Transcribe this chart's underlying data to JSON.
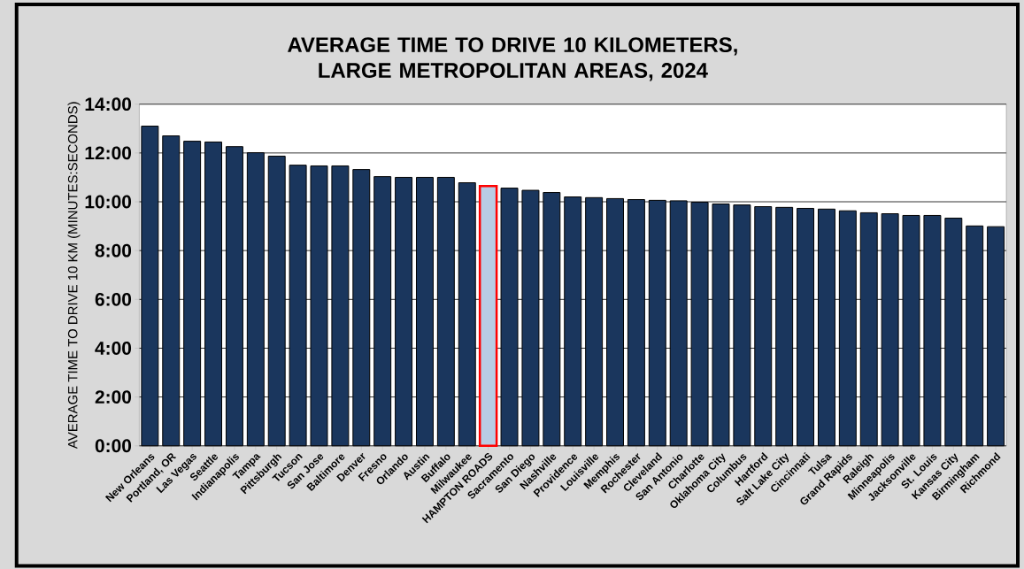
{
  "chart_data": {
    "type": "bar",
    "title": "AVERAGE TIME TO DRIVE 10 KILOMETERS, LARGE METROPOLITAN AREAS, 2024",
    "ylabel": "AVERAGE TIME TO DRIVE 10 KM (MINUTES:SECONDS)",
    "categories": [
      "New Orleans",
      "Portland, OR",
      "Las Vegas",
      "Seattle",
      "Indianapolis",
      "Tampa",
      "Pittsburgh",
      "Tucson",
      "San Jose",
      "Baltimore",
      "Denver",
      "Fresno",
      "Orlando",
      "Austin",
      "Buffalo",
      "Milwaukee",
      "HAMPTON ROADS",
      "Sacramento",
      "San Diego",
      "Nashville",
      "Providence",
      "Louisville",
      "Memphis",
      "Rochester",
      "Cleveland",
      "San Antonio",
      "Charlotte",
      "Oklahoma City",
      "Columbus",
      "Hartford",
      "Salt Lake City",
      "Cincinnati",
      "Tulsa",
      "Grand Rapids",
      "Raleigh",
      "Minneapolis",
      "Jacksonville",
      "St. Louis",
      "Kansas City",
      "Birmingham",
      "Richmond"
    ],
    "values": [
      13.1,
      12.7,
      12.48,
      12.45,
      12.26,
      12.01,
      11.87,
      11.5,
      11.47,
      11.47,
      11.32,
      11.03,
      11.0,
      11.0,
      11.0,
      10.78,
      10.64,
      10.56,
      10.47,
      10.38,
      10.2,
      10.17,
      10.13,
      10.09,
      10.06,
      10.04,
      9.98,
      9.91,
      9.87,
      9.8,
      9.77,
      9.73,
      9.7,
      9.63,
      9.55,
      9.51,
      9.44,
      9.44,
      9.33,
      9.01,
      8.98
    ],
    "colors": [
      "#1a365d",
      "#1a365d",
      "#1a365d",
      "#1a365d",
      "#1a365d",
      "#1a365d",
      "#1a365d",
      "#1a365d",
      "#1a365d",
      "#1a365d",
      "#1a365d",
      "#1a365d",
      "#1a365d",
      "#1a365d",
      "#1a365d",
      "#1a365d",
      "#b8cce4",
      "#1a365d",
      "#1a365d",
      "#1a365d",
      "#1a365d",
      "#1a365d",
      "#1a365d",
      "#1a365d",
      "#1a365d",
      "#1a365d",
      "#1a365d",
      "#1a365d",
      "#1a365d",
      "#1a365d",
      "#1a365d",
      "#1a365d",
      "#1a365d",
      "#1a365d",
      "#1a365d",
      "#1a365d",
      "#1a365d",
      "#1a365d",
      "#1a365d",
      "#1a365d",
      "#1a365d"
    ],
    "ylim": [
      0,
      14
    ],
    "yticks": [
      {
        "value": 0,
        "label": "0:00"
      },
      {
        "value": 2,
        "label": "2:00"
      },
      {
        "value": 4,
        "label": "4:00"
      },
      {
        "value": 6,
        "label": "6:00"
      },
      {
        "value": 8,
        "label": "8:00"
      },
      {
        "value": 10,
        "label": "10:00"
      },
      {
        "value": 12,
        "label": "12:00"
      },
      {
        "value": 14,
        "label": "14:00"
      }
    ],
    "grid": "y"
  }
}
